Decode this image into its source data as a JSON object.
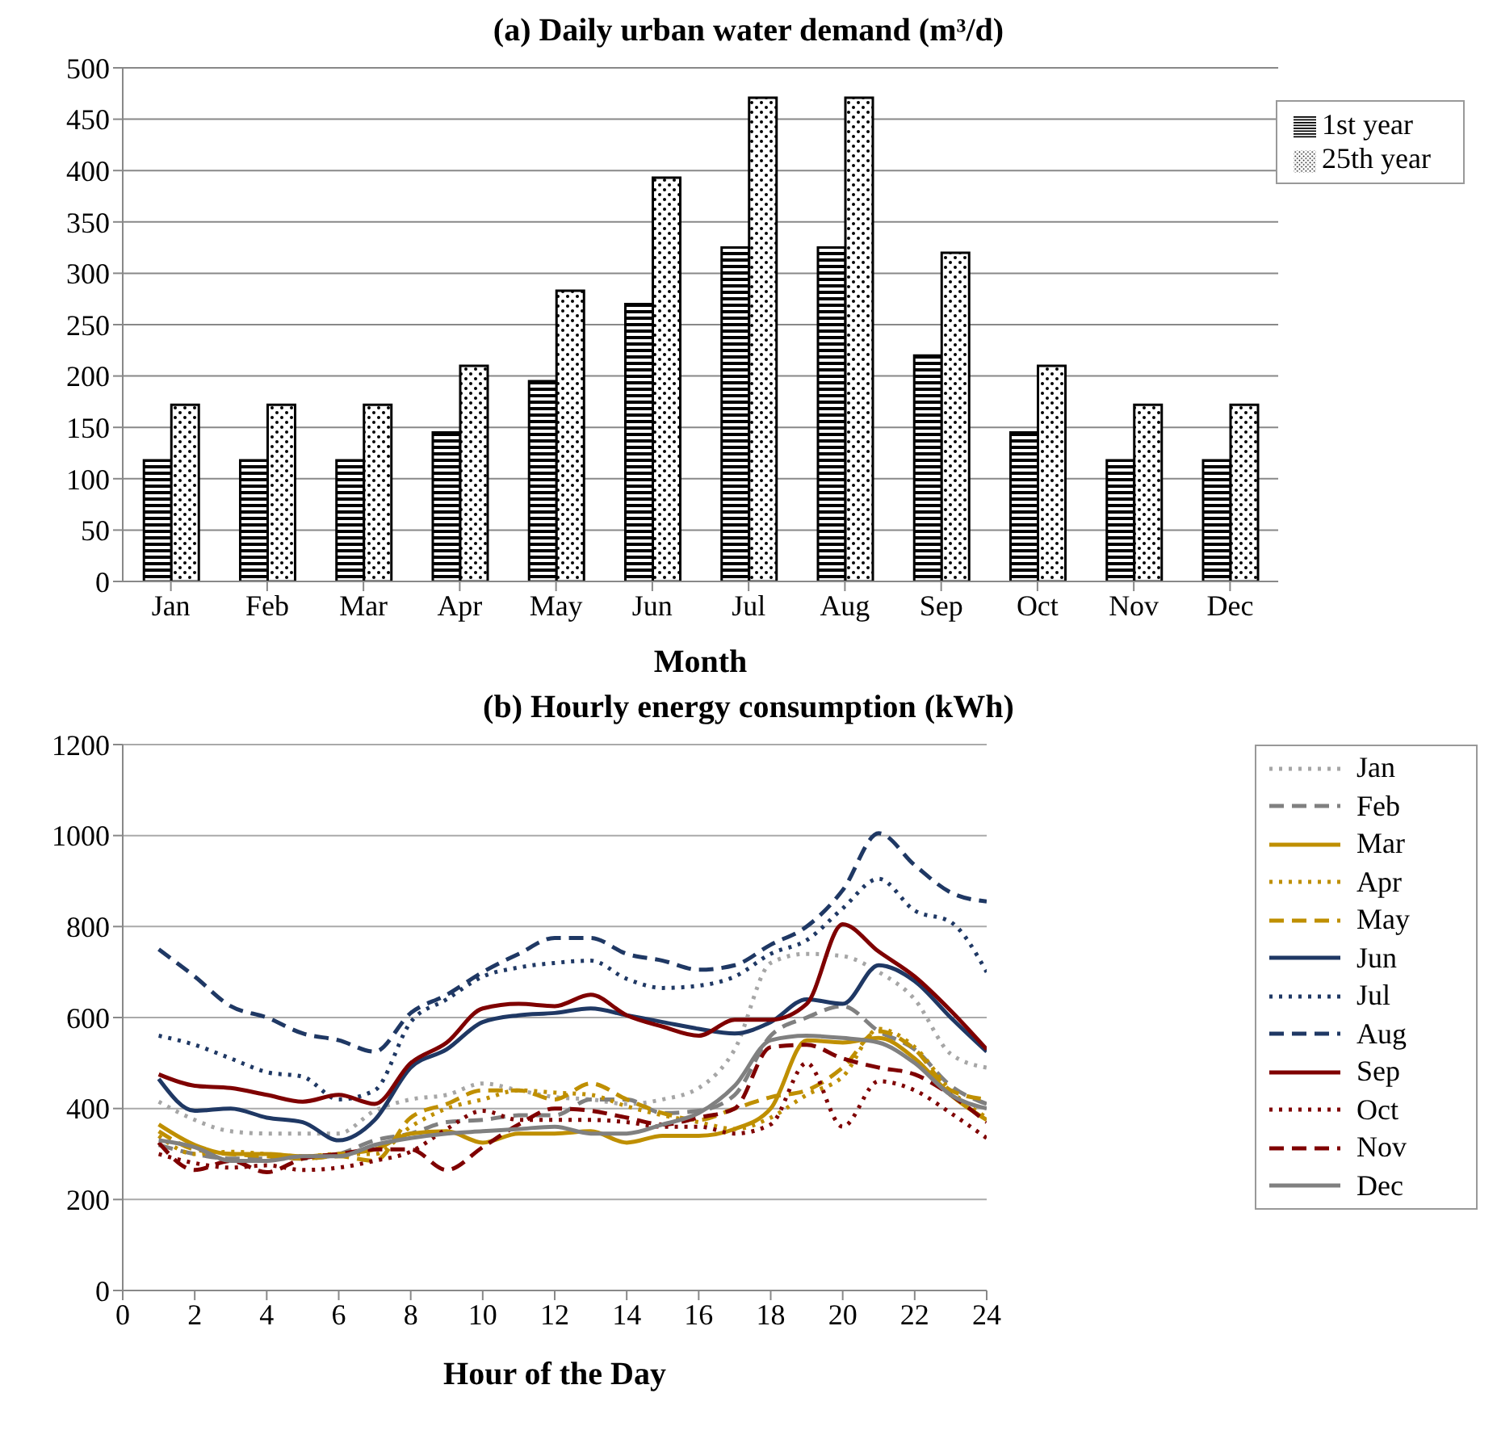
{
  "chart_data": [
    {
      "type": "bar",
      "title": "(a) Daily urban water demand (m³/d)",
      "xlabel": "Month",
      "categories": [
        "Jan",
        "Feb",
        "Mar",
        "Apr",
        "May",
        "Jun",
        "Jul",
        "Aug",
        "Sep",
        "Oct",
        "Nov",
        "Dec"
      ],
      "series": [
        {
          "name": "1st year",
          "color": "#000000",
          "values": [
            118,
            118,
            118,
            145,
            195,
            270,
            325,
            325,
            220,
            145,
            118,
            118
          ]
        },
        {
          "name": "25th year",
          "color": "#000000",
          "values": [
            172,
            172,
            172,
            210,
            283,
            393,
            471,
            471,
            320,
            210,
            172,
            172
          ]
        }
      ],
      "ylim": [
        0,
        500
      ],
      "yticks": [
        0,
        50,
        100,
        150,
        200,
        250,
        300,
        350,
        400,
        450,
        500
      ],
      "grid": "y",
      "legend": "top right"
    },
    {
      "type": "line",
      "title": "(b) Hourly energy consumption (kWh)",
      "xlabel": "Hour of the Day",
      "x": [
        1,
        2,
        3,
        4,
        5,
        6,
        7,
        8,
        9,
        10,
        11,
        12,
        13,
        14,
        15,
        16,
        17,
        18,
        19,
        20,
        21,
        22,
        23,
        24
      ],
      "marker": "none",
      "series": [
        {
          "name": "Jan",
          "color": "#a6a6a6",
          "line_style": "dotted",
          "values": [
            415,
            375,
            350,
            345,
            345,
            345,
            395,
            420,
            430,
            455,
            440,
            425,
            420,
            410,
            420,
            445,
            530,
            720,
            740,
            735,
            700,
            640,
            520,
            490
          ]
        },
        {
          "name": "Feb",
          "color": "#808080",
          "line_style": "dashed",
          "values": [
            320,
            300,
            290,
            290,
            290,
            300,
            330,
            345,
            370,
            375,
            385,
            385,
            420,
            420,
            390,
            395,
            430,
            560,
            600,
            625,
            570,
            530,
            450,
            410
          ]
        },
        {
          "name": "Mar",
          "color": "#bf8f00",
          "line_style": "solid",
          "values": [
            365,
            320,
            300,
            300,
            295,
            300,
            310,
            345,
            350,
            325,
            345,
            345,
            350,
            325,
            340,
            340,
            355,
            400,
            550,
            545,
            555,
            510,
            430,
            375
          ]
        },
        {
          "name": "Apr",
          "color": "#bf8f00",
          "line_style": "dotted",
          "values": [
            340,
            300,
            305,
            300,
            295,
            300,
            300,
            360,
            400,
            420,
            440,
            435,
            430,
            405,
            385,
            370,
            355,
            380,
            430,
            470,
            575,
            535,
            440,
            380
          ]
        },
        {
          "name": "May",
          "color": "#bf8f00",
          "line_style": "dashed",
          "values": [
            350,
            310,
            300,
            295,
            290,
            295,
            285,
            380,
            410,
            440,
            440,
            420,
            455,
            420,
            390,
            375,
            400,
            425,
            440,
            490,
            570,
            530,
            440,
            420
          ]
        },
        {
          "name": "Jun",
          "color": "#1f3864",
          "line_style": "solid",
          "values": [
            465,
            395,
            400,
            380,
            370,
            330,
            375,
            490,
            530,
            590,
            605,
            610,
            620,
            605,
            590,
            575,
            565,
            590,
            640,
            630,
            715,
            680,
            600,
            525
          ]
        },
        {
          "name": "Jul",
          "color": "#1f3864",
          "line_style": "dotted",
          "values": [
            560,
            540,
            510,
            480,
            470,
            420,
            440,
            590,
            640,
            690,
            710,
            720,
            725,
            685,
            665,
            670,
            690,
            740,
            770,
            840,
            905,
            835,
            810,
            700
          ]
        },
        {
          "name": "Aug",
          "color": "#1f3864",
          "line_style": "dashed",
          "values": [
            750,
            690,
            625,
            600,
            565,
            550,
            525,
            610,
            650,
            700,
            740,
            775,
            775,
            740,
            725,
            705,
            715,
            760,
            800,
            880,
            1005,
            935,
            875,
            855
          ]
        },
        {
          "name": "Sep",
          "color": "#7f0000",
          "line_style": "solid",
          "values": [
            475,
            450,
            445,
            430,
            415,
            430,
            410,
            500,
            545,
            620,
            630,
            625,
            650,
            605,
            580,
            560,
            595,
            595,
            630,
            805,
            745,
            690,
            615,
            530
          ]
        },
        {
          "name": "Oct",
          "color": "#7f0000",
          "line_style": "dotted",
          "values": [
            300,
            280,
            270,
            275,
            265,
            270,
            285,
            305,
            355,
            395,
            375,
            375,
            375,
            370,
            360,
            360,
            345,
            365,
            500,
            360,
            460,
            440,
            390,
            335
          ]
        },
        {
          "name": "Nov",
          "color": "#7f0000",
          "line_style": "dashed",
          "values": [
            325,
            265,
            285,
            260,
            290,
            300,
            310,
            310,
            265,
            315,
            365,
            400,
            395,
            380,
            365,
            380,
            400,
            535,
            540,
            510,
            490,
            475,
            430,
            370
          ]
        },
        {
          "name": "Dec",
          "color": "#808080",
          "line_style": "solid",
          "values": [
            330,
            315,
            285,
            285,
            295,
            295,
            320,
            335,
            345,
            350,
            355,
            360,
            345,
            345,
            365,
            390,
            450,
            550,
            560,
            555,
            545,
            500,
            430,
            400
          ]
        }
      ],
      "xlim": [
        0,
        24
      ],
      "xticks": [
        0,
        2,
        4,
        6,
        8,
        10,
        12,
        14,
        16,
        18,
        20,
        22,
        24
      ],
      "ylim": [
        0,
        1200
      ],
      "yticks": [
        0,
        200,
        400,
        600,
        800,
        1000,
        1200
      ],
      "grid": "y",
      "legend": "right"
    }
  ]
}
